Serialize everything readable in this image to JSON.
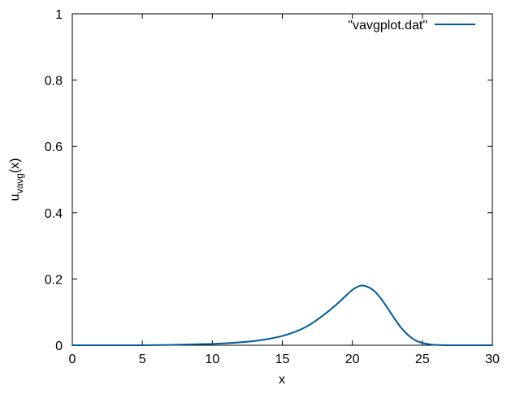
{
  "chart_data": {
    "type": "line",
    "title": "",
    "xlabel": "x",
    "ylabel": {
      "base": "u",
      "subscript": "vavg",
      "suffix": "(x)"
    },
    "xlim": [
      0,
      30
    ],
    "ylim": [
      0,
      1
    ],
    "xticks": [
      0,
      5,
      10,
      15,
      20,
      25,
      30
    ],
    "yticks": [
      0,
      0.2,
      0.4,
      0.6,
      0.8,
      1
    ],
    "xtick_labels": [
      "0",
      "5",
      "10",
      "15",
      "20",
      "25",
      "30"
    ],
    "ytick_labels": [
      "0",
      "0.2",
      "0.4",
      "0.6",
      "0.8",
      "1"
    ],
    "grid": false,
    "legend": {
      "position": "top-right"
    },
    "series": [
      {
        "name": "\"vavgplot.dat\"",
        "color": "#005a9c",
        "x": [
          0,
          5,
          8,
          10,
          11,
          12,
          13,
          14,
          15,
          16,
          17,
          18,
          18.5,
          19,
          19.5,
          20,
          20.3,
          20.6,
          21,
          21.5,
          22,
          22.5,
          23,
          23.5,
          24,
          24.5,
          25,
          25.5,
          26,
          27,
          28,
          30
        ],
        "y": [
          0,
          0,
          0.002,
          0.004,
          0.006,
          0.009,
          0.013,
          0.019,
          0.028,
          0.042,
          0.063,
          0.093,
          0.11,
          0.128,
          0.148,
          0.167,
          0.175,
          0.18,
          0.178,
          0.166,
          0.143,
          0.113,
          0.081,
          0.052,
          0.03,
          0.015,
          0.007,
          0.003,
          0.001,
          0,
          0,
          0
        ]
      }
    ]
  }
}
